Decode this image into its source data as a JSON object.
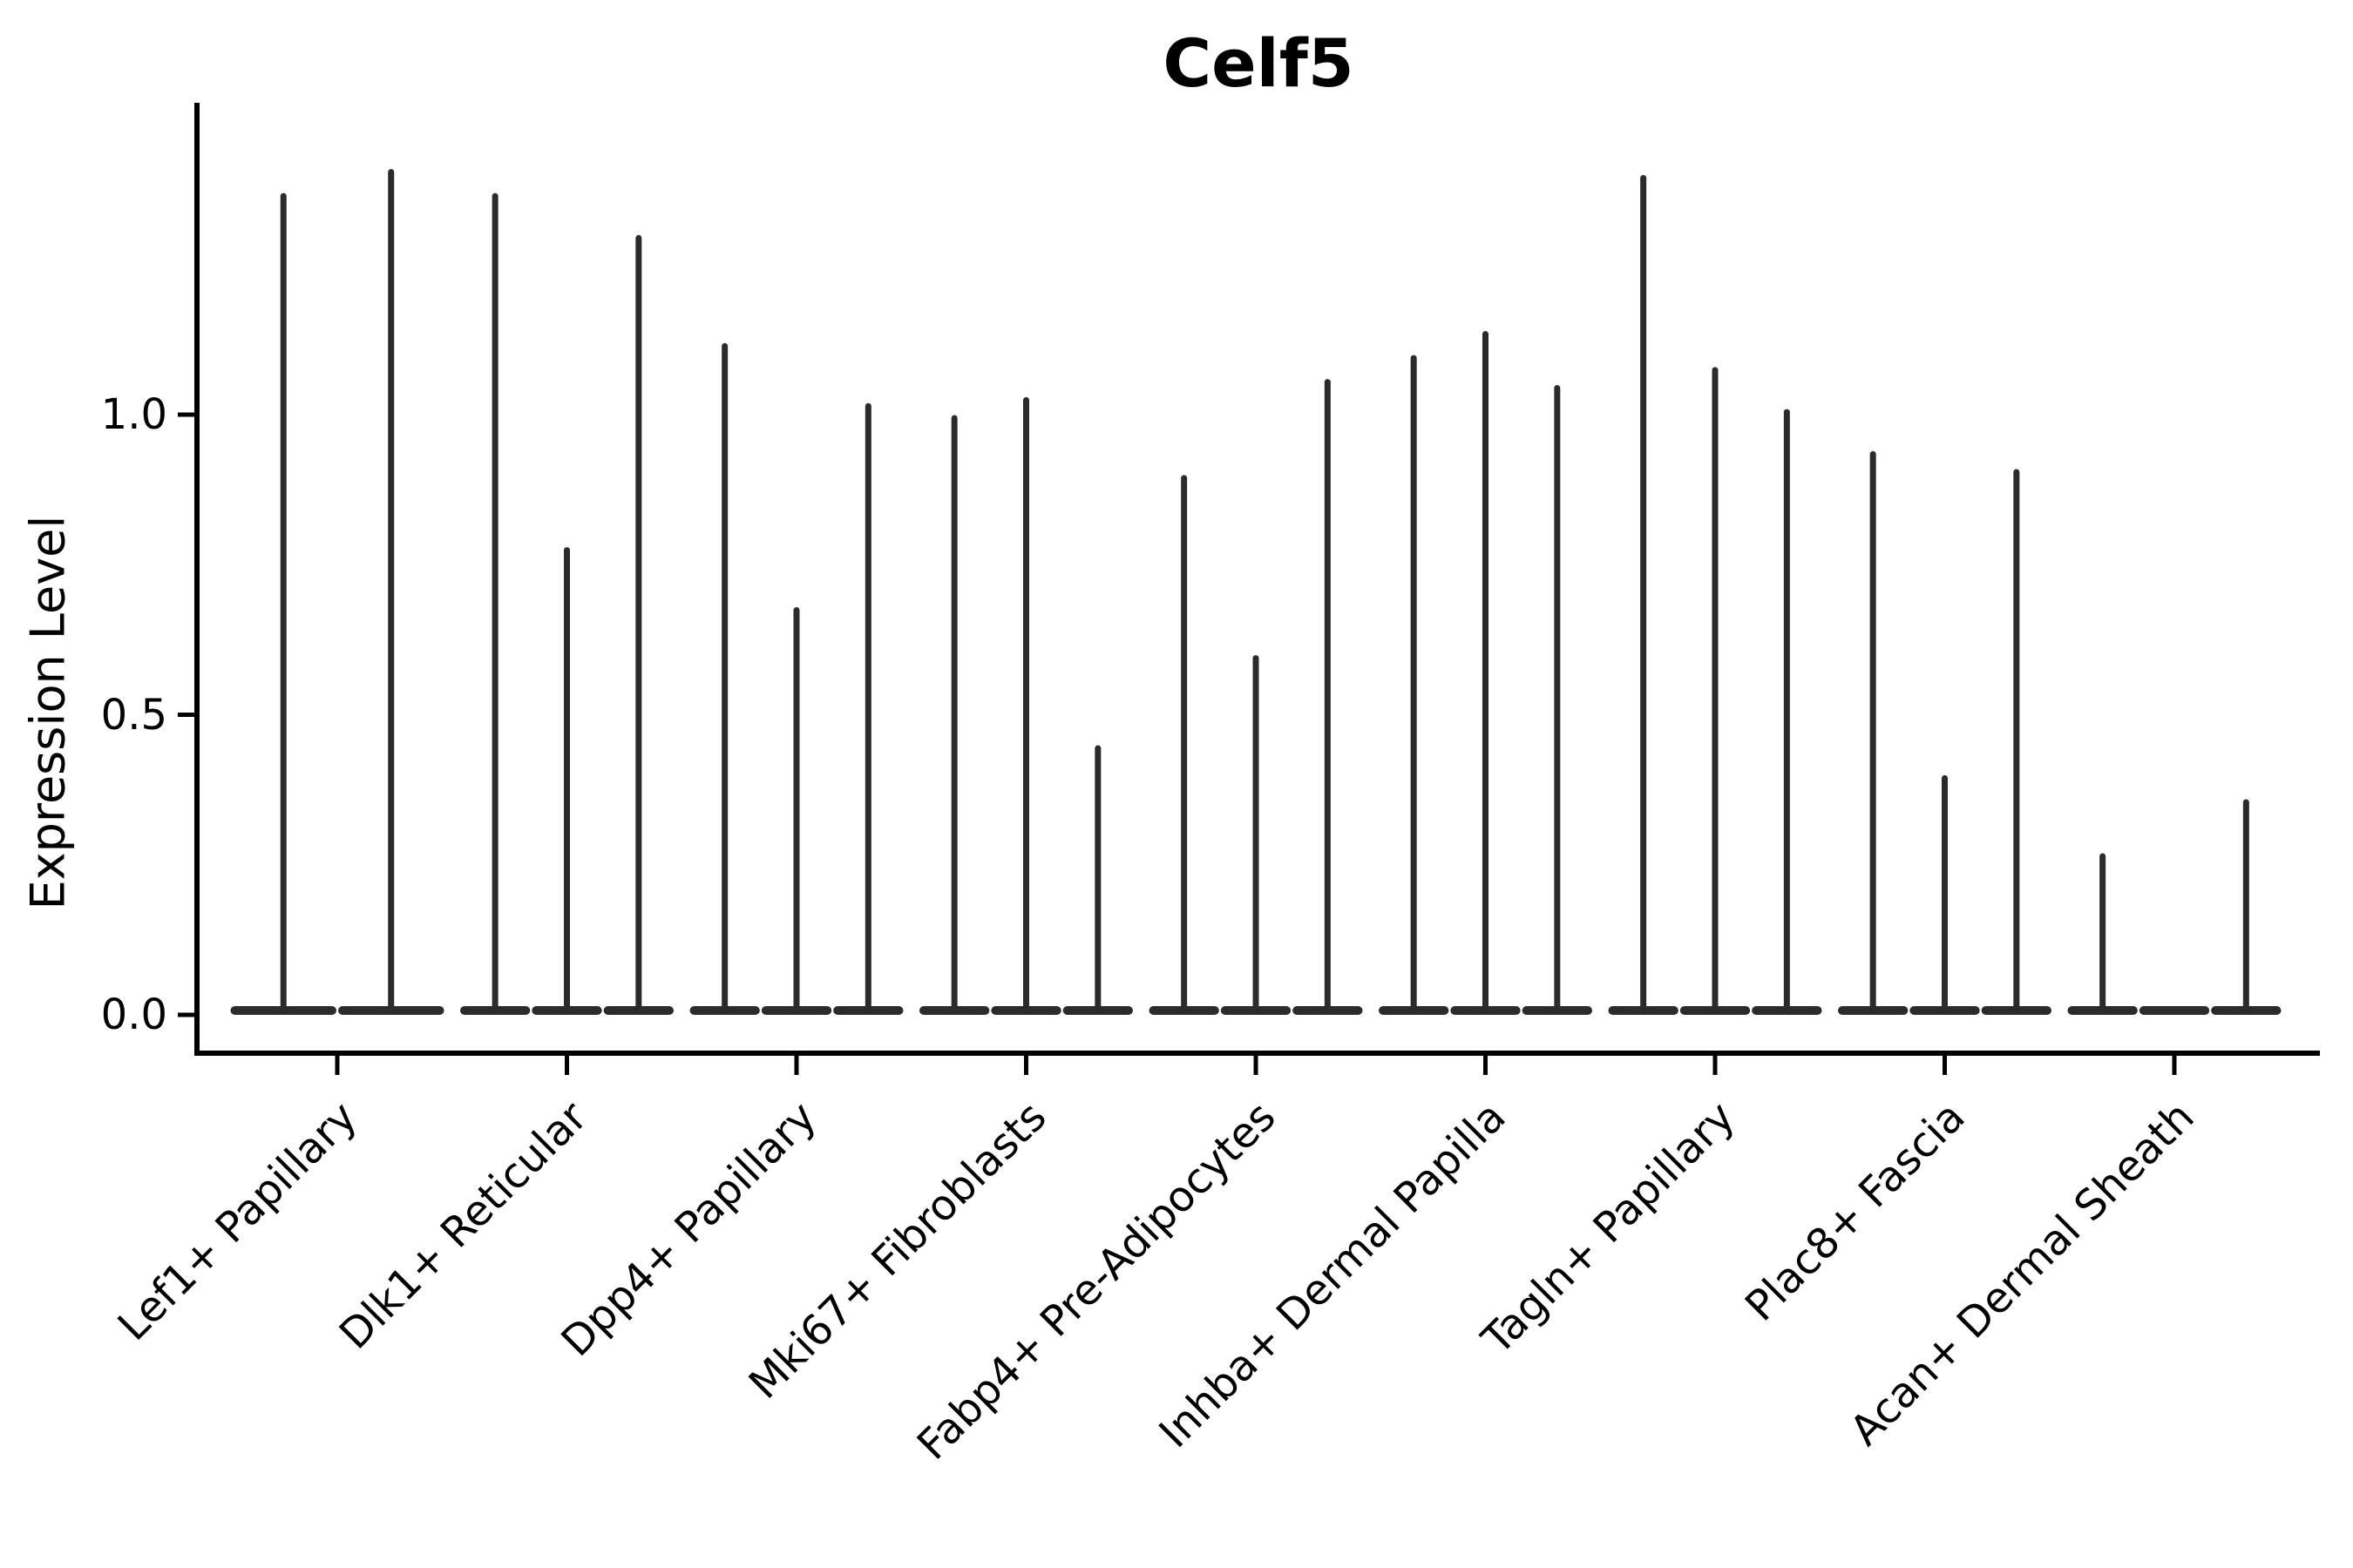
{
  "chart_data": {
    "type": "violin",
    "title": "Celf5",
    "ylabel": "Expression Level",
    "xlabel": "",
    "ylim": [
      0,
      1.52
    ],
    "grid": false,
    "legend": false,
    "y_ticks": [
      {
        "label": "0.0",
        "value": 0.0
      },
      {
        "label": "0.5",
        "value": 0.5
      },
      {
        "label": "1.0",
        "value": 1.0
      }
    ],
    "groups": [
      {
        "label": "Lef1+ Papillary",
        "violin_max": [
          1.37,
          1.41
        ]
      },
      {
        "label": "Dlk1+ Reticular",
        "violin_max": [
          1.37,
          0.78,
          1.3
        ]
      },
      {
        "label": "Dpp4+ Papillary",
        "violin_max": [
          1.12,
          0.68,
          1.02
        ]
      },
      {
        "label": "Mki67+ Fibroblasts",
        "violin_max": [
          1.0,
          1.03,
          0.45
        ]
      },
      {
        "label": "Fabp4+ Pre-Adipocytes",
        "violin_max": [
          0.9,
          0.6,
          1.06
        ]
      },
      {
        "label": "Inhba+ Dermal Papilla",
        "violin_max": [
          1.1,
          1.14,
          1.05
        ]
      },
      {
        "label": "Tagln+ Papillary",
        "violin_max": [
          1.4,
          1.08,
          1.01
        ]
      },
      {
        "label": "Plac8+ Fascia",
        "violin_max": [
          0.94,
          0.4,
          0.91
        ]
      },
      {
        "label": "Acan+ Dermal Sheath",
        "violin_max": [
          0.27,
          0.0,
          0.36
        ]
      }
    ],
    "colors": {
      "violin": "#2b2b2b",
      "axis": "#000000",
      "text": "#000000",
      "background": "#ffffff"
    }
  }
}
